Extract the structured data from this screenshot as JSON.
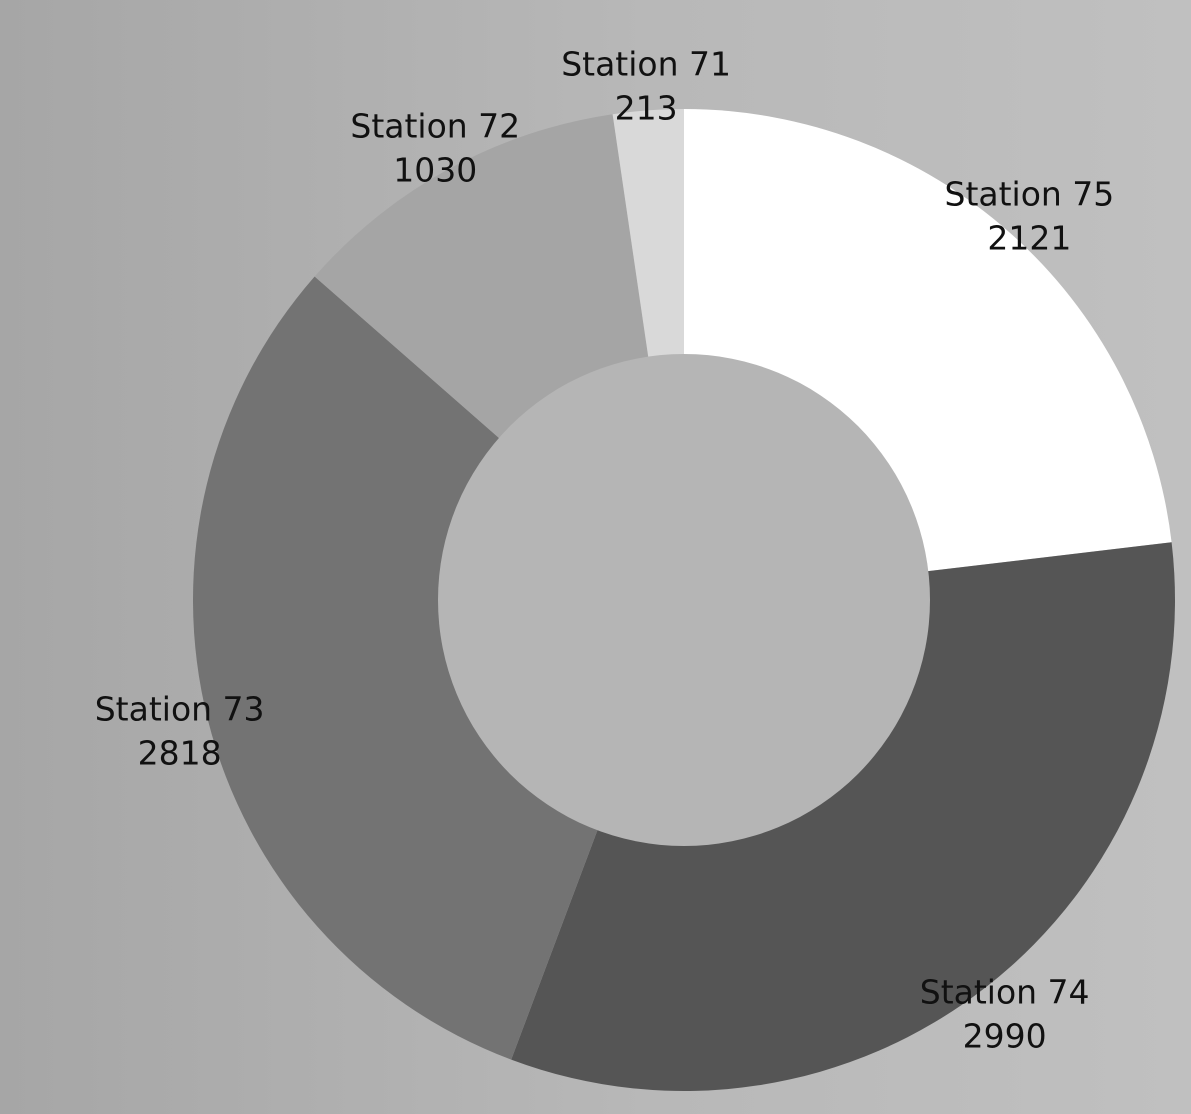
{
  "chart_data": {
    "type": "pie",
    "variant": "donut",
    "title": "",
    "start_angle": "12 o'clock",
    "direction": "clockwise",
    "slices": [
      {
        "label": "Station 75",
        "value": 2121,
        "value_label": "2121",
        "color": "#ffffff"
      },
      {
        "label": "Station 74",
        "value": 2990,
        "value_label": "2990",
        "color": "#555555"
      },
      {
        "label": "Station 73",
        "value": 2818,
        "value_label": "2818",
        "color": "#737373"
      },
      {
        "label": "Station 72",
        "value": 1030,
        "value_label": "1030",
        "color": "#a5a5a5"
      },
      {
        "label": "Station 71",
        "value": 213,
        "value_label": "213",
        "color": "#d9d9d9"
      }
    ],
    "hole_color": "#b5b5b5"
  }
}
